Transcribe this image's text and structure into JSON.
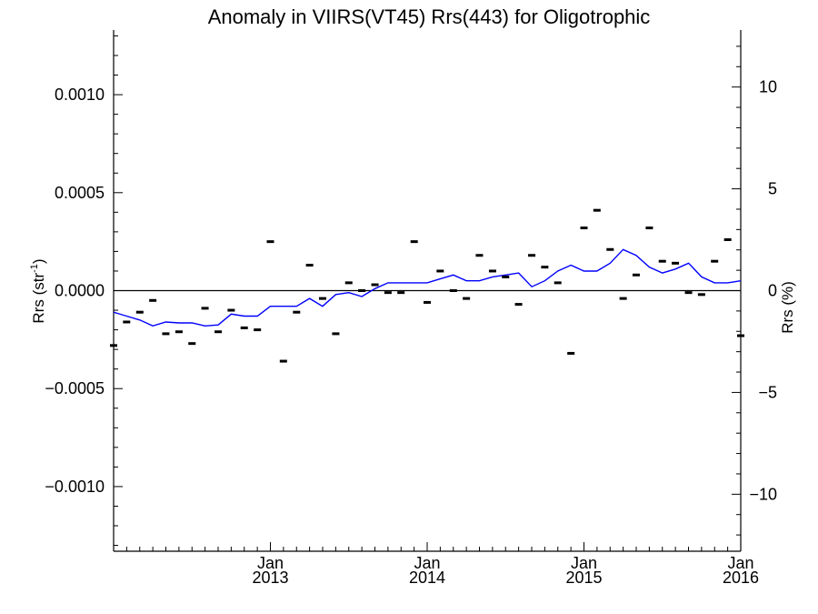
{
  "chart_data": {
    "type": "scatter",
    "title": "Anomaly in VIIRS(VT45) Rrs(443) for Oligotrophic",
    "ylabel_main": "Rrs (str",
    "ylabel_sup": "-1",
    "ylabel_close": ")",
    "ylabel_right": "Rrs (%)",
    "xlim": [
      2012.0,
      2016.0
    ],
    "ylim": [
      -0.00133,
      0.00133
    ],
    "y2lim": [
      -12.8,
      12.8
    ],
    "x_ticks": [
      {
        "x": 2013,
        "month": "Jan",
        "year": "2013"
      },
      {
        "x": 2014,
        "month": "Jan",
        "year": "2014"
      },
      {
        "x": 2015,
        "month": "Jan",
        "year": "2015"
      },
      {
        "x": 2016,
        "month": "Jan",
        "year": "2016"
      }
    ],
    "y_ticks": [
      {
        "v": 0.001,
        "label": "0.0010"
      },
      {
        "v": 0.0005,
        "label": "0.0005"
      },
      {
        "v": 0,
        "label": "0.0000"
      },
      {
        "v": -0.0005,
        "label": "−0.0005"
      },
      {
        "v": -0.001,
        "label": "−0.0010"
      }
    ],
    "y2_ticks": [
      {
        "v": 10,
        "label": "10"
      },
      {
        "v": 5,
        "label": "5"
      },
      {
        "v": 0,
        "label": "0"
      },
      {
        "v": -5,
        "label": "−5"
      },
      {
        "v": -10,
        "label": "−10"
      }
    ],
    "zero_line": 0,
    "colors": {
      "axis": "#000000",
      "line": "#0000ff",
      "marker": "#000000"
    },
    "series": [
      {
        "kind": "monthly-anomaly-markers",
        "x": [
          2012.0,
          2012.083,
          2012.167,
          2012.25,
          2012.333,
          2012.417,
          2012.5,
          2012.583,
          2012.667,
          2012.75,
          2012.833,
          2012.917,
          2013.0,
          2013.083,
          2013.167,
          2013.25,
          2013.333,
          2013.417,
          2013.5,
          2013.583,
          2013.667,
          2013.75,
          2013.833,
          2013.917,
          2014.0,
          2014.083,
          2014.167,
          2014.25,
          2014.333,
          2014.417,
          2014.5,
          2014.583,
          2014.667,
          2014.75,
          2014.833,
          2014.917,
          2015.0,
          2015.083,
          2015.167,
          2015.25,
          2015.333,
          2015.417,
          2015.5,
          2015.583,
          2015.667,
          2015.75,
          2015.833,
          2015.917,
          2016.0
        ],
        "y": [
          -0.00028,
          -0.00016,
          -0.00011,
          -5e-05,
          -0.00022,
          -0.00021,
          -0.00027,
          -9e-05,
          -0.00021,
          -0.0001,
          -0.00019,
          -0.0002,
          0.00025,
          -0.00036,
          -0.00011,
          0.00013,
          -4e-05,
          -0.00022,
          4e-05,
          0.0,
          3e-05,
          -1e-05,
          -1e-05,
          0.00025,
          -6e-05,
          0.0001,
          0.0,
          -4e-05,
          0.00018,
          0.0001,
          7e-05,
          -7e-05,
          0.00018,
          0.00012,
          4e-05,
          -0.00032,
          0.00032,
          0.00041,
          0.00021,
          -4e-05,
          8e-05,
          0.00032,
          0.00015,
          0.00014,
          -1e-05,
          -2e-05,
          0.00015,
          0.00026,
          -0.00023
        ]
      },
      {
        "kind": "running-mean-line",
        "x": [
          2012.0,
          2012.083,
          2012.167,
          2012.25,
          2012.333,
          2012.417,
          2012.5,
          2012.583,
          2012.667,
          2012.75,
          2012.833,
          2012.917,
          2013.0,
          2013.083,
          2013.167,
          2013.25,
          2013.333,
          2013.417,
          2013.5,
          2013.583,
          2013.667,
          2013.75,
          2013.833,
          2013.917,
          2014.0,
          2014.083,
          2014.167,
          2014.25,
          2014.333,
          2014.417,
          2014.5,
          2014.583,
          2014.667,
          2014.75,
          2014.833,
          2014.917,
          2015.0,
          2015.083,
          2015.167,
          2015.25,
          2015.333,
          2015.417,
          2015.5,
          2015.583,
          2015.667,
          2015.75,
          2015.833,
          2015.917,
          2016.0
        ],
        "y": [
          -0.00011,
          -0.00013,
          -0.00015,
          -0.00018,
          -0.00016,
          -0.000165,
          -0.000165,
          -0.00018,
          -0.000175,
          -0.00012,
          -0.00013,
          -0.00013,
          -8e-05,
          -8e-05,
          -8e-05,
          -4e-05,
          -8e-05,
          -2e-05,
          -1e-05,
          -3e-05,
          1e-05,
          4e-05,
          4e-05,
          4e-05,
          4e-05,
          6e-05,
          8e-05,
          5e-05,
          5e-05,
          7e-05,
          8e-05,
          9e-05,
          2e-05,
          5e-05,
          0.0001,
          0.00013,
          0.0001,
          0.0001,
          0.00014,
          0.00021,
          0.00018,
          0.00012,
          9e-05,
          0.00011,
          0.00014,
          7e-05,
          4e-05,
          4e-05,
          5e-05
        ]
      }
    ]
  }
}
